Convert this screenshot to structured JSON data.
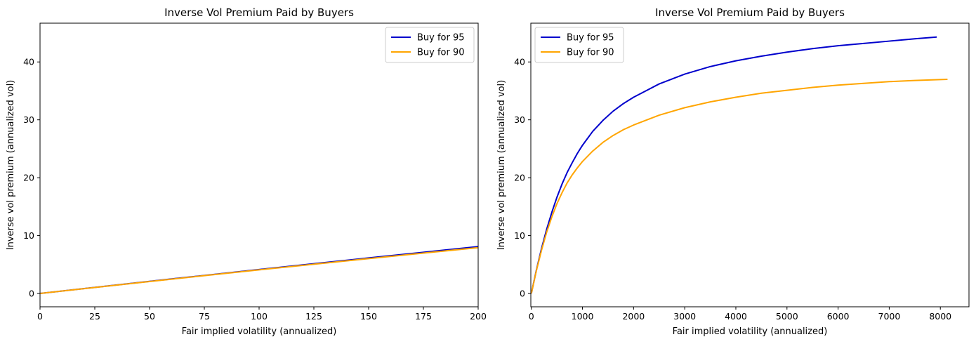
{
  "chart_data": [
    {
      "type": "line",
      "title": "Inverse Vol Premium Paid by Buyers",
      "xlabel": "Fair implied volatility (annualized)",
      "ylabel": "Inverse vol premium (annualized vol)",
      "xlim": [
        0,
        200
      ],
      "ylim": [
        -2.3,
        46.7
      ],
      "xticks": [
        0,
        25,
        50,
        75,
        100,
        125,
        150,
        175,
        200
      ],
      "yticks": [
        0,
        10,
        20,
        30,
        40
      ],
      "grid": false,
      "legend_position": "top-right",
      "series": [
        {
          "name": "Buy for 95",
          "color": "#0000cc",
          "x": [
            0,
            25,
            50,
            75,
            100,
            125,
            150,
            175,
            200
          ],
          "y": [
            0,
            1.05,
            2.1,
            3.12,
            4.14,
            5.14,
            6.14,
            7.12,
            8.1
          ]
        },
        {
          "name": "Buy for 90",
          "color": "#ffa500",
          "x": [
            0,
            25,
            50,
            75,
            100,
            125,
            150,
            175,
            200
          ],
          "y": [
            0,
            1.04,
            2.07,
            3.08,
            4.08,
            5.06,
            6.03,
            6.98,
            7.92
          ]
        }
      ]
    },
    {
      "type": "line",
      "title": "Inverse Vol Premium Paid by Buyers",
      "xlabel": "Fair implied volatility (annualized)",
      "ylabel": "Inverse vol premium (annualized vol)",
      "xlim": [
        -10,
        8560
      ],
      "ylim": [
        -2.3,
        46.7
      ],
      "xticks": [
        0,
        1000,
        2000,
        3000,
        4000,
        5000,
        6000,
        7000,
        8000
      ],
      "yticks": [
        0,
        10,
        20,
        30,
        40
      ],
      "grid": false,
      "legend_position": "top-left",
      "series": [
        {
          "name": "Buy for 95",
          "color": "#0000cc",
          "x": [
            0,
            100,
            200,
            300,
            400,
            500,
            600,
            700,
            800,
            900,
            1000,
            1200,
            1400,
            1600,
            1800,
            2000,
            2500,
            3000,
            3500,
            4000,
            4500,
            5000,
            5500,
            6000,
            6500,
            7000,
            7500,
            7930
          ],
          "y": [
            0,
            4.1,
            7.8,
            11.1,
            14.0,
            16.6,
            18.9,
            20.9,
            22.6,
            24.2,
            25.6,
            28.0,
            29.9,
            31.5,
            32.8,
            33.9,
            36.2,
            37.9,
            39.2,
            40.2,
            41.0,
            41.7,
            42.3,
            42.8,
            43.2,
            43.6,
            44.0,
            44.3
          ]
        },
        {
          "name": "Buy for 90",
          "color": "#ffa500",
          "x": [
            0,
            100,
            200,
            300,
            400,
            500,
            600,
            700,
            800,
            900,
            1000,
            1200,
            1400,
            1600,
            1800,
            2000,
            2500,
            3000,
            3500,
            4000,
            4500,
            5000,
            5500,
            6000,
            6500,
            7000,
            7500,
            8140
          ],
          "y": [
            0,
            4.0,
            7.5,
            10.6,
            13.2,
            15.5,
            17.4,
            19.1,
            20.5,
            21.7,
            22.8,
            24.6,
            26.1,
            27.3,
            28.3,
            29.1,
            30.8,
            32.1,
            33.1,
            33.9,
            34.6,
            35.1,
            35.6,
            36.0,
            36.3,
            36.6,
            36.8,
            37.0
          ]
        }
      ]
    }
  ]
}
